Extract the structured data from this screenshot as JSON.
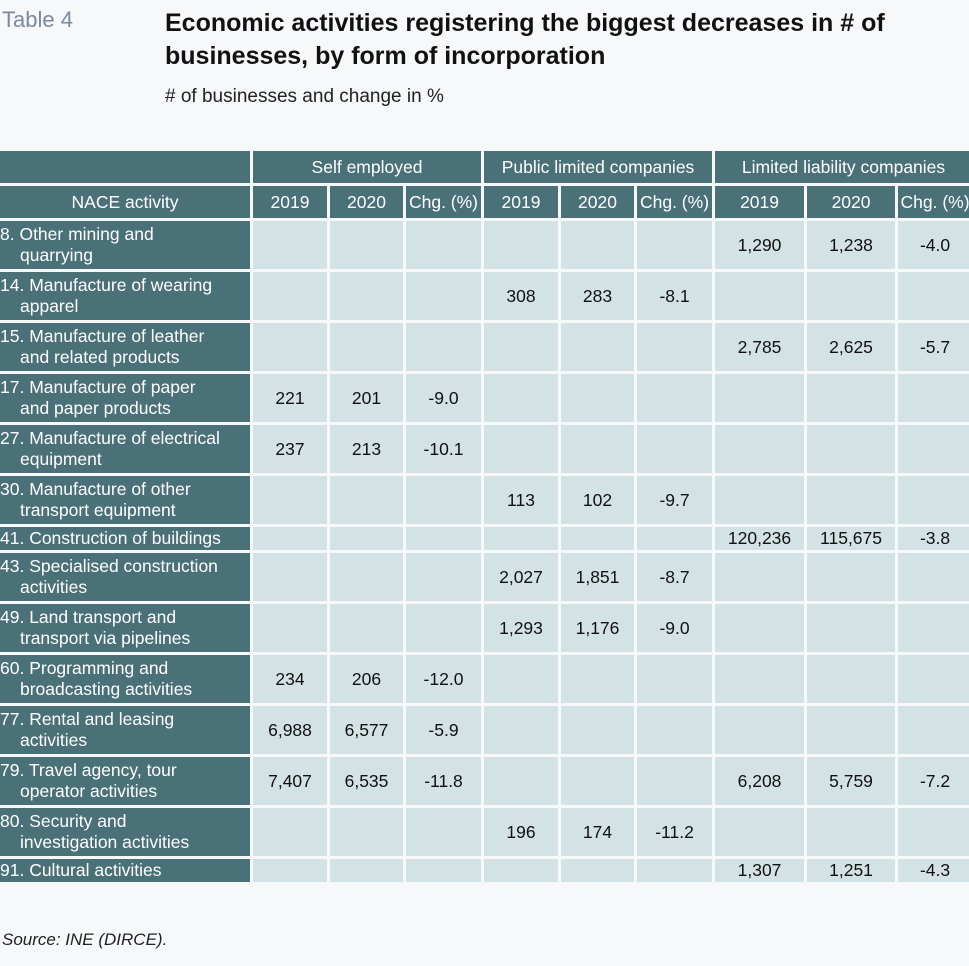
{
  "table_label": "Table 4",
  "title": "Economic activities registering the biggest decreases in # of businesses, by form of incorporation",
  "subtitle": "# of businesses and change in %",
  "groups": {
    "self_employed": "Self employed",
    "public": "Public limited companies",
    "llc": "Limited liability companies"
  },
  "columns": {
    "activity": "NACE activity",
    "y2019": "2019",
    "y2020": "2020",
    "chg": "Chg. (%)"
  },
  "rows": [
    {
      "activity_l1": "8. Other mining and",
      "activity_l2": "quarrying",
      "values": [
        "",
        "",
        "",
        "",
        "",
        "",
        "1,290",
        "1,238",
        "-4.0"
      ]
    },
    {
      "activity_l1": "14. Manufacture of wearing",
      "activity_l2": "apparel",
      "values": [
        "",
        "",
        "",
        "308",
        "283",
        "-8.1",
        "",
        "",
        ""
      ]
    },
    {
      "activity_l1": "15. Manufacture of leather",
      "activity_l2": "and related products",
      "values": [
        "",
        "",
        "",
        "",
        "",
        "",
        "2,785",
        "2,625",
        "-5.7"
      ]
    },
    {
      "activity_l1": "17. Manufacture of paper",
      "activity_l2": "and paper products",
      "values": [
        "221",
        "201",
        "-9.0",
        "",
        "",
        "",
        "",
        "",
        ""
      ]
    },
    {
      "activity_l1": "27. Manufacture of electrical",
      "activity_l2": "equipment",
      "values": [
        "237",
        "213",
        "-10.1",
        "",
        "",
        "",
        "",
        "",
        ""
      ]
    },
    {
      "activity_l1": "30. Manufacture of other",
      "activity_l2": "transport equipment",
      "values": [
        "",
        "",
        "",
        "113",
        "102",
        "-9.7",
        "",
        "",
        ""
      ]
    },
    {
      "activity_l1": "41. Construction of buildings",
      "activity_l2": "",
      "values": [
        "",
        "",
        "",
        "",
        "",
        "",
        "120,236",
        "115,675",
        "-3.8"
      ]
    },
    {
      "activity_l1": "43. Specialised construction",
      "activity_l2": "activities",
      "values": [
        "",
        "",
        "",
        "2,027",
        "1,851",
        "-8.7",
        "",
        "",
        ""
      ]
    },
    {
      "activity_l1": "49. Land transport and",
      "activity_l2": "transport via pipelines",
      "values": [
        "",
        "",
        "",
        "1,293",
        "1,176",
        "-9.0",
        "",
        "",
        ""
      ]
    },
    {
      "activity_l1": "60. Programming and",
      "activity_l2": "broadcasting activities",
      "values": [
        "234",
        "206",
        "-12.0",
        "",
        "",
        "",
        "",
        "",
        ""
      ]
    },
    {
      "activity_l1": "77. Rental and leasing",
      "activity_l2": "activities",
      "values": [
        "6,988",
        "6,577",
        "-5.9",
        "",
        "",
        "",
        "",
        "",
        ""
      ]
    },
    {
      "activity_l1": "79. Travel agency, tour",
      "activity_l2": "operator activities",
      "values": [
        "7,407",
        "6,535",
        "-11.8",
        "",
        "",
        "",
        "6,208",
        "5,759",
        "-7.2"
      ]
    },
    {
      "activity_l1": "80. Security and",
      "activity_l2": "investigation activities",
      "values": [
        "",
        "",
        "",
        "196",
        "174",
        "-11.2",
        "",
        "",
        ""
      ]
    },
    {
      "activity_l1": "91. Cultural activities",
      "activity_l2": "",
      "values": [
        "",
        "",
        "",
        "",
        "",
        "",
        "1,307",
        "1,251",
        "-4.3"
      ]
    }
  ],
  "source": "Source: INE (DIRCE)."
}
